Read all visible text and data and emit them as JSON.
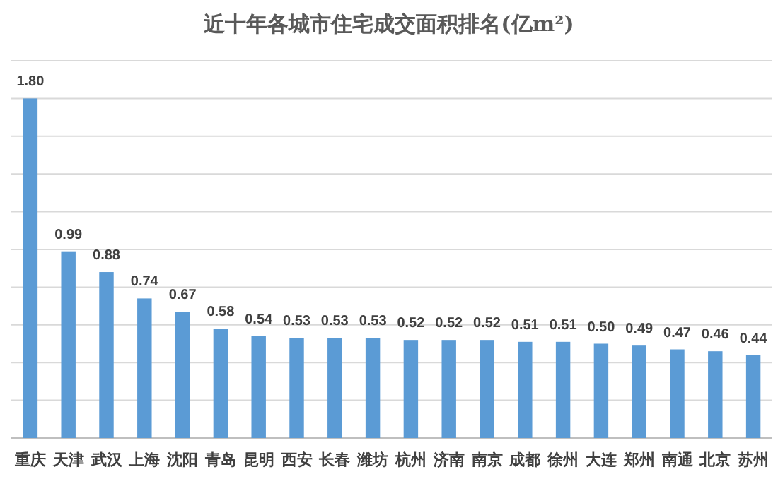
{
  "chart_data": {
    "type": "bar",
    "title": "近十年各城市住宅成交面积排名(亿m²)",
    "categories": [
      "重庆",
      "天津",
      "武汉",
      "上海",
      "沈阳",
      "青岛",
      "昆明",
      "西安",
      "长春",
      "潍坊",
      "杭州",
      "济南",
      "南京",
      "成都",
      "徐州",
      "大连",
      "郑州",
      "南通",
      "北京",
      "苏州"
    ],
    "values": [
      1.8,
      0.99,
      0.88,
      0.74,
      0.67,
      0.58,
      0.54,
      0.53,
      0.53,
      0.53,
      0.52,
      0.52,
      0.52,
      0.51,
      0.51,
      0.5,
      0.49,
      0.47,
      0.46,
      0.44
    ],
    "value_labels": [
      "1.80",
      "0.99",
      "0.88",
      "0.74",
      "0.67",
      "0.58",
      "0.54",
      "0.53",
      "0.53",
      "0.53",
      "0.52",
      "0.52",
      "0.52",
      "0.51",
      "0.51",
      "0.50",
      "0.49",
      "0.47",
      "0.46",
      "0.44"
    ],
    "color": "#5b9bd5",
    "grid": "y",
    "tick_labels": "x",
    "ylim": [
      0,
      2
    ],
    "yticks": [
      {
        "value": 0,
        "label": null
      },
      {
        "value": 0.2,
        "label": null
      },
      {
        "value": 0.4,
        "label": null
      },
      {
        "value": 0.6,
        "label": null
      },
      {
        "value": 0.8,
        "label": null
      },
      {
        "value": 1.0,
        "label": null
      },
      {
        "value": 1.2,
        "label": null
      },
      {
        "value": 1.4,
        "label": null
      },
      {
        "value": 1.6,
        "label": null
      },
      {
        "value": 1.8,
        "label": null
      },
      {
        "value": 2.0,
        "label": null
      }
    ]
  }
}
